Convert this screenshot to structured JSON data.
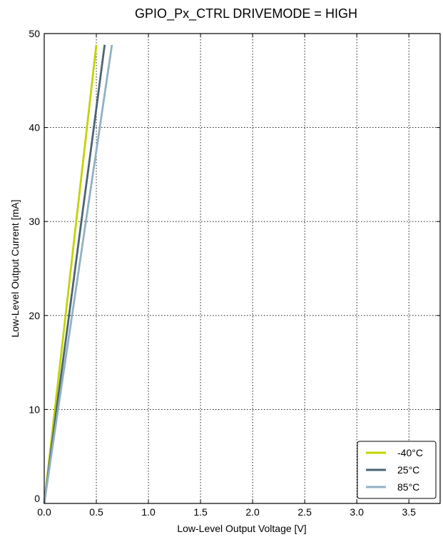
{
  "chart_data": {
    "type": "line",
    "title": "GPIO_Px_CTRL DRIVEMODE = HIGH",
    "xlabel": "Low-Level Output Voltage [V]",
    "ylabel": "Low-Level Output Current [mA]",
    "xlim": [
      0.0,
      3.8
    ],
    "ylim": [
      0,
      50
    ],
    "xticks": [
      "0.0",
      "0.5",
      "1.0",
      "1.5",
      "2.0",
      "2.5",
      "3.0",
      "3.5"
    ],
    "yticks": [
      "0",
      "10",
      "20",
      "30",
      "40",
      "50"
    ],
    "grid": true,
    "legend_position": "bottom-right",
    "series": [
      {
        "name": "-40°C",
        "color": "#c2d400",
        "x": [
          0.0,
          0.05,
          0.1,
          0.2,
          0.3,
          0.4,
          0.5
        ],
        "y": [
          0,
          4.9,
          9.8,
          19.5,
          29.3,
          39.0,
          48.8
        ]
      },
      {
        "name": "25°C",
        "color": "#4a6475",
        "x": [
          0.0,
          0.058,
          0.116,
          0.232,
          0.348,
          0.464,
          0.58
        ],
        "y": [
          0,
          4.9,
          9.8,
          19.5,
          29.3,
          39.0,
          48.8
        ]
      },
      {
        "name": "85°C",
        "color": "#92b0c4",
        "x": [
          0.0,
          0.065,
          0.13,
          0.26,
          0.39,
          0.52,
          0.65
        ],
        "y": [
          0,
          4.9,
          9.8,
          19.5,
          29.3,
          39.0,
          48.8
        ]
      }
    ]
  }
}
